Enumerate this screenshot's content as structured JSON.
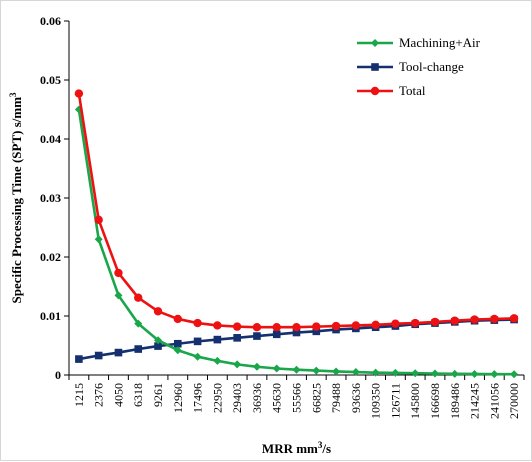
{
  "chart_data": {
    "type": "line",
    "title": "",
    "xlabel_main": "MRR mm",
    "xlabel_sup": "3",
    "xlabel_tail": "/s",
    "ylabel_main": "Specific Processing Time (SPT)  s/mm",
    "ylabel_sup": "3",
    "categories": [
      "1215",
      "2376",
      "4050",
      "6318",
      "9261",
      "12960",
      "17496",
      "22950",
      "29403",
      "36936",
      "45630",
      "55566",
      "66825",
      "79488",
      "93636",
      "109350",
      "126711",
      "145800",
      "166698",
      "189486",
      "214245",
      "241056",
      "270000"
    ],
    "ylim": [
      0,
      0.06
    ],
    "yticks": [
      "0",
      "0.01",
      "0.02",
      "0.03",
      "0.04",
      "0.05",
      "0.06"
    ],
    "grid": false,
    "legend_position": "top-right",
    "series": [
      {
        "name": "Machining+Air",
        "color": "#1aa64a",
        "marker": "diamond",
        "values": [
          0.045,
          0.023,
          0.0135,
          0.0087,
          0.0059,
          0.0042,
          0.0031,
          0.0024,
          0.0018,
          0.0014,
          0.0011,
          0.0009,
          0.00075,
          0.0006,
          0.0005,
          0.0004,
          0.00035,
          0.0003,
          0.00025,
          0.0002,
          0.00018,
          0.00015,
          0.00013
        ]
      },
      {
        "name": "Tool-change",
        "color": "#14306e",
        "marker": "square",
        "values": [
          0.0027,
          0.0033,
          0.0038,
          0.0044,
          0.0049,
          0.0053,
          0.0057,
          0.006,
          0.0063,
          0.0066,
          0.0069,
          0.0072,
          0.0074,
          0.0077,
          0.0079,
          0.0081,
          0.0083,
          0.0086,
          0.0088,
          0.009,
          0.0092,
          0.0093,
          0.0094
        ]
      },
      {
        "name": "Total",
        "color": "#ee1111",
        "marker": "circle",
        "values": [
          0.0477,
          0.0263,
          0.0173,
          0.0131,
          0.0108,
          0.0095,
          0.0088,
          0.0084,
          0.0082,
          0.0081,
          0.0081,
          0.0081,
          0.0082,
          0.0083,
          0.0084,
          0.0085,
          0.0087,
          0.0088,
          0.009,
          0.0092,
          0.0094,
          0.0095,
          0.0096
        ]
      }
    ]
  }
}
